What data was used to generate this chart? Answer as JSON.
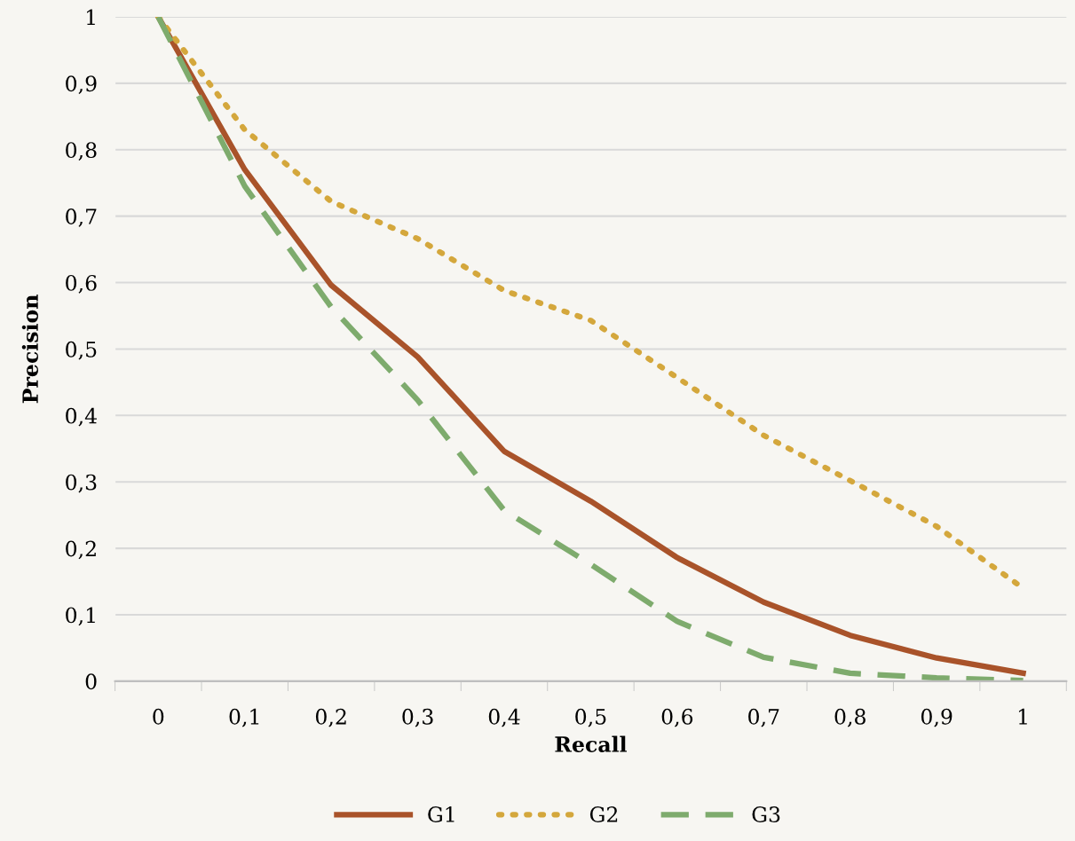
{
  "chart_data": {
    "type": "line",
    "xlabel": "Recall",
    "ylabel": "Precision",
    "categories": [
      "0",
      "0,1",
      "0,2",
      "0,3",
      "0,4",
      "0,5",
      "0,6",
      "0,7",
      "0,8",
      "0,9",
      "1"
    ],
    "series": [
      {
        "name": "G1",
        "color": "#a9532a",
        "line_style": "solid",
        "values": [
          1.0,
          0.77,
          0.596,
          0.488,
          0.346,
          0.271,
          0.186,
          0.119,
          0.069,
          0.035,
          0.012
        ]
      },
      {
        "name": "G2",
        "color": "#d4a73c",
        "line_style": "dotted",
        "values": [
          1.0,
          0.83,
          0.722,
          0.666,
          0.588,
          0.543,
          0.457,
          0.37,
          0.302,
          0.233,
          0.14
        ]
      },
      {
        "name": "G3",
        "color": "#7eab6d",
        "line_style": "dashed",
        "values": [
          1.0,
          0.745,
          0.563,
          0.423,
          0.257,
          0.176,
          0.09,
          0.036,
          0.012,
          0.005,
          0.001
        ]
      }
    ],
    "ylim": [
      0,
      1
    ],
    "yticks": [
      0,
      {
        "value": 0.1,
        "label": "0,1"
      },
      {
        "value": 0.2,
        "label": "0,2"
      },
      {
        "value": 0.3,
        "label": "0,3"
      },
      {
        "value": 0.4,
        "label": "0,4"
      },
      {
        "value": 0.5,
        "label": "0,5"
      },
      {
        "value": 0.6,
        "label": "0,6"
      },
      {
        "value": 0.7,
        "label": "0,7"
      },
      {
        "value": 0.8,
        "label": "0,8"
      },
      {
        "value": 0.9,
        "label": "0,9"
      },
      1
    ],
    "grid": "y",
    "legend": "bottom",
    "marker": "none"
  }
}
